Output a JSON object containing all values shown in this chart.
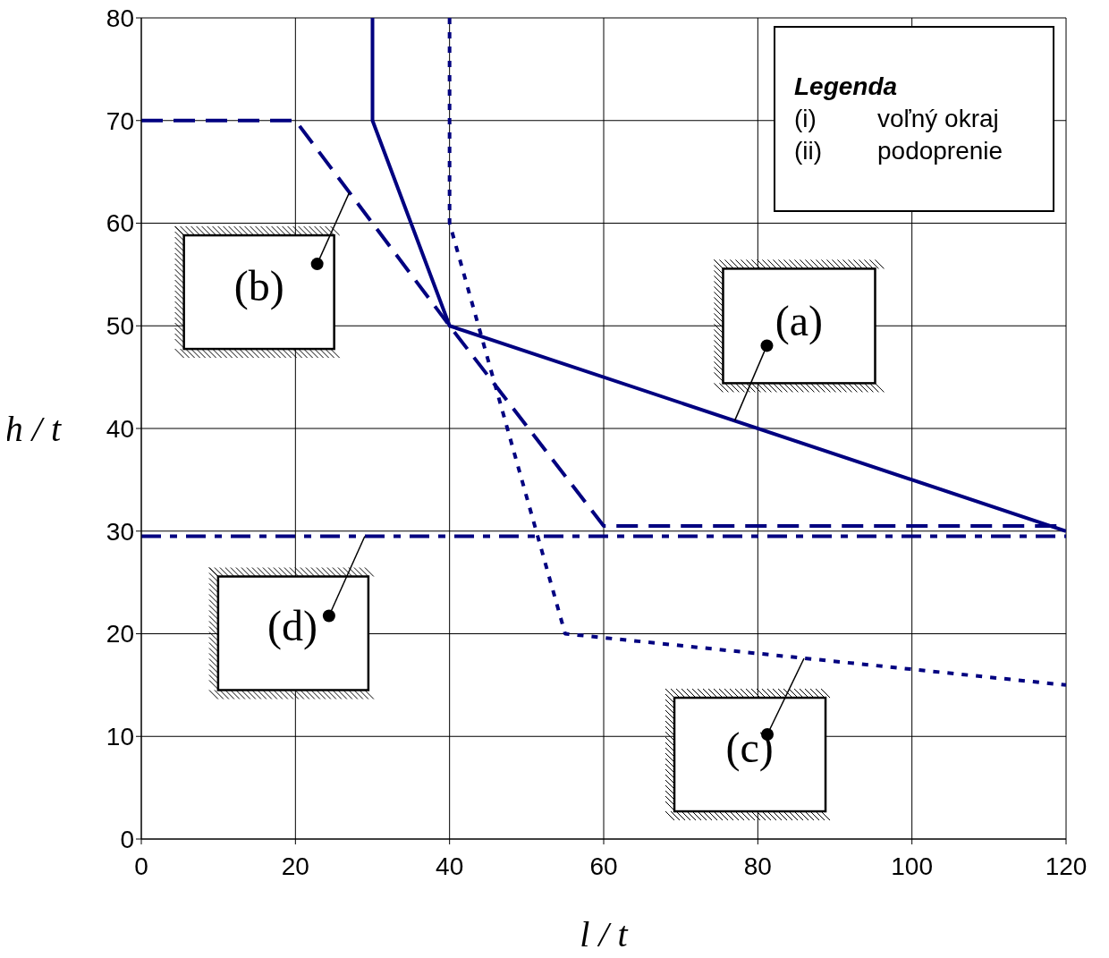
{
  "chart_data": {
    "type": "line",
    "xlabel": "l / t",
    "ylabel": "h / t",
    "xlim": [
      0,
      120
    ],
    "ylim": [
      0,
      80
    ],
    "xticks": [
      0,
      20,
      40,
      60,
      80,
      100,
      120
    ],
    "yticks": [
      0,
      10,
      20,
      30,
      40,
      50,
      60,
      70,
      80
    ],
    "grid": true,
    "marker": "none",
    "series": [
      {
        "color": "#000080",
        "line_style": "solid",
        "x": [
          30,
          30,
          40,
          120
        ],
        "values": [
          80,
          70,
          50,
          30
        ]
      },
      {
        "color": "#000080",
        "line_style": "dashed",
        "x": [
          0,
          20,
          40,
          60,
          120
        ],
        "values": [
          70,
          70,
          50,
          30.5,
          30.5
        ]
      },
      {
        "color": "#000080",
        "line_style": "dotted",
        "x": [
          40,
          40,
          55,
          120
        ],
        "values": [
          80,
          60,
          20,
          15
        ]
      },
      {
        "color": "#000080",
        "line_style": "dashed",
        "x": [
          0,
          120
        ],
        "values": [
          29.5,
          29.5
        ]
      }
    ],
    "annotations": [
      {
        "text": "(a)",
        "x": 77,
        "y": 40.75
      },
      {
        "text": "(b)",
        "x": 27,
        "y": 63
      },
      {
        "text": "(c)",
        "x": 86,
        "y": 17.6
      },
      {
        "text": "(d)",
        "x": 29,
        "y": 29.5
      },
      "Legenda",
      "(i)",
      "voľný okraj",
      "(ii)",
      "podoprenie"
    ]
  }
}
